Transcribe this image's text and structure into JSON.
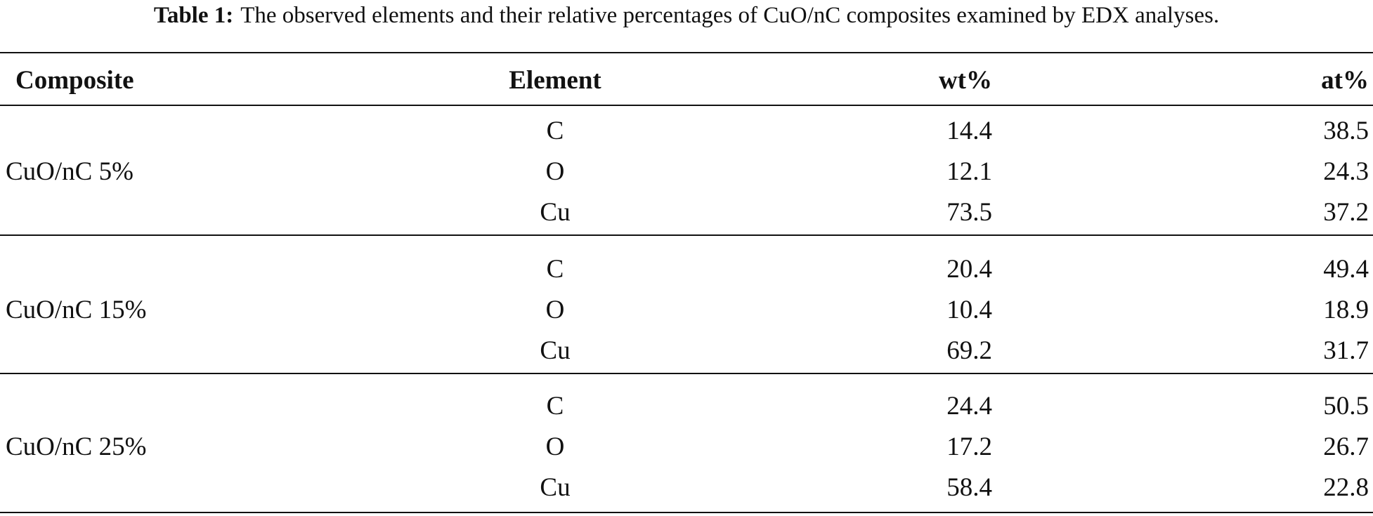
{
  "caption": {
    "label": "Table 1:",
    "text": "The observed elements and their relative percentages of CuO/nC composites examined by EDX analyses."
  },
  "table": {
    "header": [
      "Composite",
      "Element",
      "wt%",
      "at%"
    ],
    "groups": [
      {
        "composite": "CuO/nC 5%",
        "rows": [
          [
            "C",
            14.4,
            38.5
          ],
          [
            "O",
            12.1,
            24.3
          ],
          [
            "Cu",
            73.5,
            37.2
          ]
        ]
      },
      {
        "composite": "CuO/nC 15%",
        "rows": [
          [
            "C",
            20.4,
            49.4
          ],
          [
            "O",
            10.4,
            18.9
          ],
          [
            "Cu",
            69.2,
            31.7
          ]
        ]
      },
      {
        "composite": "CuO/nC 25%",
        "rows": [
          [
            "C",
            24.4,
            50.5
          ],
          [
            "O",
            17.2,
            26.7
          ],
          [
            "Cu",
            58.4,
            22.8
          ]
        ]
      }
    ]
  }
}
